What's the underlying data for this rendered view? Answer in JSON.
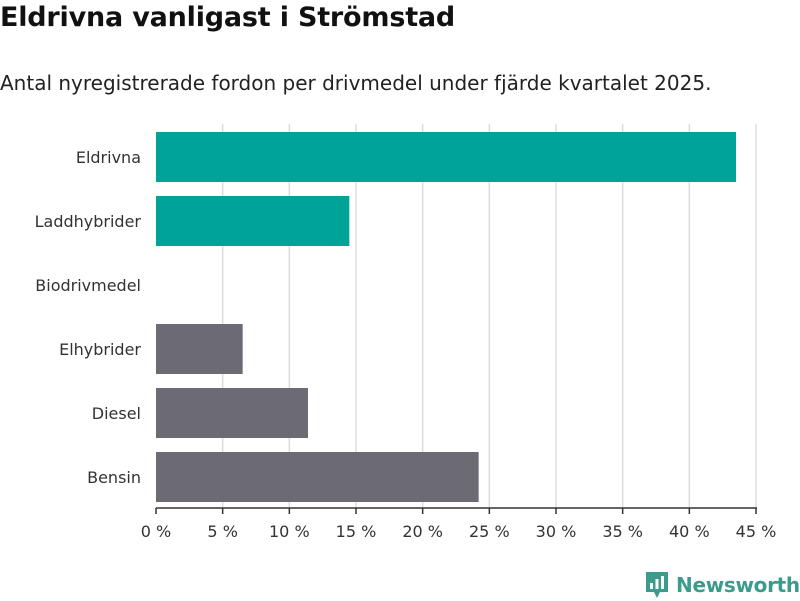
{
  "title": "Eldrivna vanligast i Strömstad",
  "subtitle": "Antal nyregistrerade fordon per drivmedel under fjärde kvartalet 2025.",
  "brand": {
    "name": "Newsworthy",
    "color": "#3c9b8c"
  },
  "colors": {
    "highlight": "#00a398",
    "other": "#6c6b73",
    "grid": "#dddddd",
    "axis": "#333333"
  },
  "chart_data": {
    "type": "bar",
    "orientation": "horizontal",
    "title": "Eldrivna vanligast i Strömstad",
    "subtitle": "Antal nyregistrerade fordon per drivmedel under fjärde kvartalet 2025.",
    "categories": [
      "Eldrivna",
      "Laddhybrider",
      "Biodrivmedel",
      "Elhybrider",
      "Diesel",
      "Bensin"
    ],
    "values": [
      43.5,
      14.5,
      0,
      6.5,
      11.4,
      24.2
    ],
    "unit": "%",
    "highlight": [
      true,
      true,
      false,
      false,
      false,
      false
    ],
    "xlim": [
      0,
      45
    ],
    "xticks": [
      0,
      5,
      10,
      15,
      20,
      25,
      30,
      35,
      40,
      45
    ],
    "xtick_labels": [
      "0 %",
      "5 %",
      "10 %",
      "15 %",
      "20 %",
      "25 %",
      "30 %",
      "35 %",
      "40 %",
      "45 %"
    ],
    "xlabel": "",
    "ylabel": "",
    "grid": true,
    "legend": "none"
  }
}
